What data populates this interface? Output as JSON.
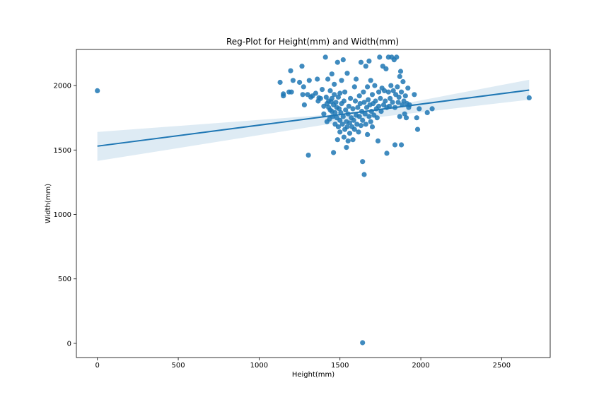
{
  "chart_data": {
    "type": "scatter",
    "title": "Reg-Plot for Height(mm) and Width(mm)",
    "xlabel": "Height(mm)",
    "ylabel": "Width(mm)",
    "xlim": [
      -130,
      2800
    ],
    "ylim": [
      -110,
      2280
    ],
    "xticks": [
      0,
      500,
      1000,
      1500,
      2000,
      2500
    ],
    "yticks": [
      0,
      500,
      1000,
      1500,
      2000
    ],
    "grid": false,
    "colors": {
      "points": "#1f77b4",
      "line": "#1f77b4",
      "band": "#1f77b4"
    },
    "regression": {
      "x": [
        0,
        2670
      ],
      "y": [
        1530,
        1965
      ]
    },
    "confidence_band": {
      "x": [
        0,
        1600,
        2670
      ],
      "upper": [
        1640,
        1790,
        2045
      ],
      "lower": [
        1415,
        1735,
        1890
      ]
    },
    "points": [
      [
        0,
        1960
      ],
      [
        2670,
        1905
      ],
      [
        1640,
        5
      ],
      [
        1130,
        2025
      ],
      [
        1150,
        1920
      ],
      [
        1150,
        1935
      ],
      [
        1185,
        1950
      ],
      [
        1195,
        2115
      ],
      [
        1200,
        1950
      ],
      [
        1210,
        2040
      ],
      [
        1250,
        2025
      ],
      [
        1265,
        2150
      ],
      [
        1270,
        1930
      ],
      [
        1275,
        1990
      ],
      [
        1280,
        1850
      ],
      [
        1300,
        1930
      ],
      [
        1305,
        1460
      ],
      [
        1310,
        2040
      ],
      [
        1320,
        1910
      ],
      [
        1330,
        1920
      ],
      [
        1350,
        1940
      ],
      [
        1360,
        2050
      ],
      [
        1365,
        1880
      ],
      [
        1370,
        1905
      ],
      [
        1380,
        1900
      ],
      [
        1390,
        1970
      ],
      [
        1400,
        1840
      ],
      [
        1400,
        1780
      ],
      [
        1410,
        2220
      ],
      [
        1415,
        1910
      ],
      [
        1420,
        1860
      ],
      [
        1420,
        1720
      ],
      [
        1425,
        2050
      ],
      [
        1430,
        1830
      ],
      [
        1430,
        1880
      ],
      [
        1435,
        1740
      ],
      [
        1440,
        1810
      ],
      [
        1440,
        1960
      ],
      [
        1445,
        1875
      ],
      [
        1450,
        1800
      ],
      [
        1450,
        1900
      ],
      [
        1450,
        2090
      ],
      [
        1455,
        1760
      ],
      [
        1460,
        1850
      ],
      [
        1460,
        1480
      ],
      [
        1465,
        1930
      ],
      [
        1465,
        2010
      ],
      [
        1470,
        1700
      ],
      [
        1470,
        1790
      ],
      [
        1475,
        1870
      ],
      [
        1480,
        1750
      ],
      [
        1480,
        1830
      ],
      [
        1485,
        2180
      ],
      [
        1485,
        1580
      ],
      [
        1490,
        1910
      ],
      [
        1490,
        1680
      ],
      [
        1495,
        1820
      ],
      [
        1500,
        1730
      ],
      [
        1500,
        1640
      ],
      [
        1500,
        1940
      ],
      [
        1505,
        1790
      ],
      [
        1510,
        1860
      ],
      [
        1510,
        2040
      ],
      [
        1515,
        1700
      ],
      [
        1520,
        2200
      ],
      [
        1520,
        1760
      ],
      [
        1525,
        1600
      ],
      [
        1525,
        1880
      ],
      [
        1530,
        1660
      ],
      [
        1530,
        1950
      ],
      [
        1535,
        1810
      ],
      [
        1540,
        1720
      ],
      [
        1540,
        1520
      ],
      [
        1545,
        1680
      ],
      [
        1545,
        2095
      ],
      [
        1550,
        1780
      ],
      [
        1550,
        1570
      ],
      [
        1555,
        1840
      ],
      [
        1560,
        1630
      ],
      [
        1560,
        1710
      ],
      [
        1565,
        1900
      ],
      [
        1570,
        1750
      ],
      [
        1575,
        1680
      ],
      [
        1580,
        1580
      ],
      [
        1580,
        1820
      ],
      [
        1585,
        1730
      ],
      [
        1590,
        1990
      ],
      [
        1590,
        1660
      ],
      [
        1595,
        1880
      ],
      [
        1600,
        1770
      ],
      [
        1600,
        2050
      ],
      [
        1605,
        1700
      ],
      [
        1610,
        1830
      ],
      [
        1615,
        1640
      ],
      [
        1620,
        1760
      ],
      [
        1620,
        1920
      ],
      [
        1625,
        1860
      ],
      [
        1630,
        1690
      ],
      [
        1630,
        2180
      ],
      [
        1635,
        1800
      ],
      [
        1640,
        1410
      ],
      [
        1640,
        1730
      ],
      [
        1645,
        1950
      ],
      [
        1650,
        1310
      ],
      [
        1650,
        1870
      ],
      [
        1655,
        1780
      ],
      [
        1660,
        1700
      ],
      [
        1660,
        2150
      ],
      [
        1665,
        1830
      ],
      [
        1670,
        1990
      ],
      [
        1670,
        1620
      ],
      [
        1675,
        1890
      ],
      [
        1680,
        2190
      ],
      [
        1680,
        1760
      ],
      [
        1685,
        1850
      ],
      [
        1690,
        1720
      ],
      [
        1690,
        2040
      ],
      [
        1695,
        1800
      ],
      [
        1700,
        1930
      ],
      [
        1700,
        1680
      ],
      [
        1705,
        1860
      ],
      [
        1710,
        1770
      ],
      [
        1715,
        2000
      ],
      [
        1720,
        1880
      ],
      [
        1725,
        1820
      ],
      [
        1730,
        1750
      ],
      [
        1735,
        1570
      ],
      [
        1740,
        1950
      ],
      [
        1740,
        1840
      ],
      [
        1745,
        2220
      ],
      [
        1750,
        1900
      ],
      [
        1755,
        1800
      ],
      [
        1760,
        1980
      ],
      [
        1765,
        2150
      ],
      [
        1770,
        1850
      ],
      [
        1775,
        1960
      ],
      [
        1780,
        1880
      ],
      [
        1785,
        2130
      ],
      [
        1790,
        1830
      ],
      [
        1790,
        1475
      ],
      [
        1800,
        1950
      ],
      [
        1800,
        2220
      ],
      [
        1805,
        1840
      ],
      [
        1810,
        1900
      ],
      [
        1815,
        2000
      ],
      [
        1820,
        2220
      ],
      [
        1825,
        1870
      ],
      [
        1830,
        1960
      ],
      [
        1835,
        2200
      ],
      [
        1840,
        1830
      ],
      [
        1840,
        1540
      ],
      [
        1845,
        1930
      ],
      [
        1850,
        2220
      ],
      [
        1855,
        1990
      ],
      [
        1860,
        1870
      ],
      [
        1865,
        1910
      ],
      [
        1870,
        2070
      ],
      [
        1870,
        1760
      ],
      [
        1875,
        2110
      ],
      [
        1880,
        1950
      ],
      [
        1880,
        1540
      ],
      [
        1885,
        1850
      ],
      [
        1890,
        2030
      ],
      [
        1895,
        1880
      ],
      [
        1900,
        1780
      ],
      [
        1905,
        1920
      ],
      [
        1910,
        1750
      ],
      [
        1915,
        1860
      ],
      [
        1920,
        1980
      ],
      [
        1925,
        1830
      ],
      [
        1930,
        1850
      ],
      [
        1960,
        1930
      ],
      [
        1975,
        1750
      ],
      [
        1980,
        1660
      ],
      [
        1990,
        1820
      ],
      [
        2040,
        1790
      ],
      [
        2070,
        1820
      ]
    ]
  }
}
